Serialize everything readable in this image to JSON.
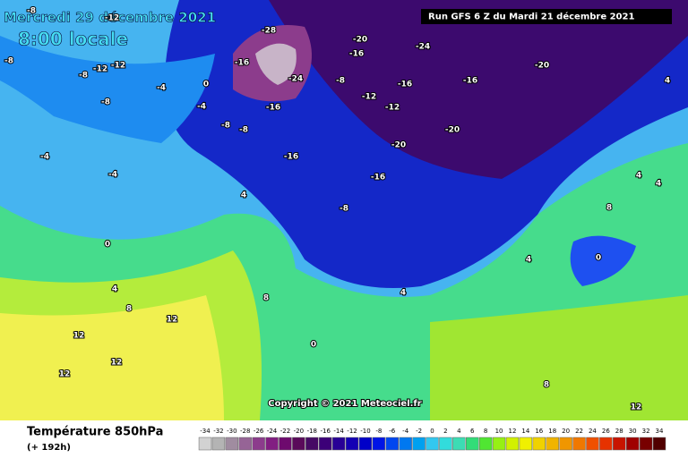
{
  "header": {
    "date": "Mercredi 29 décembre 2021",
    "time": "8:00 locale",
    "run": "Run GFS 6 Z du Mardi 21 décembre 2021"
  },
  "map": {
    "copyright": "Copyright © 2021 Meteociel.fr",
    "contour_labels": [
      "-8",
      "-12",
      "-8",
      "-8",
      "-12",
      "-12",
      "-4",
      "-8",
      "-4",
      "-8",
      "-8",
      "-28",
      "-16",
      "-24",
      "-16",
      "-8",
      "-20",
      "-16",
      "-24",
      "-12",
      "-12",
      "-16",
      "-16",
      "-20",
      "-20",
      "-20",
      "-16",
      "-16",
      "-8",
      "-4",
      "-4",
      "0",
      "4",
      "0",
      "4",
      "8",
      "12",
      "12",
      "12",
      "12",
      "8",
      "0",
      "4",
      "4",
      "4",
      "4",
      "8",
      "12",
      "8",
      "0",
      "4"
    ]
  },
  "footer": {
    "title": "Température 850hPa",
    "lead": "(+ 192h)"
  },
  "legend": {
    "labels": [
      "-34",
      "-32",
      "-30",
      "-28",
      "-26",
      "-24",
      "-22",
      "-20",
      "-18",
      "-16",
      "-14",
      "-12",
      "-10",
      "-8",
      "-6",
      "-4",
      "-2",
      "0",
      "2",
      "4",
      "6",
      "8",
      "10",
      "12",
      "14",
      "16",
      "18",
      "20",
      "22",
      "24",
      "26",
      "28",
      "30",
      "32",
      "34"
    ],
    "colors": [
      "#d2d2d2",
      "#b4b4b4",
      "#a08ca0",
      "#966496",
      "#8c3c8c",
      "#821e82",
      "#6e0a6e",
      "#5a0a5a",
      "#460a64",
      "#3c0078",
      "#280096",
      "#1400b4",
      "#0000c8",
      "#0014e6",
      "#0046f0",
      "#0078f0",
      "#00a0f0",
      "#32c8f0",
      "#32dcdc",
      "#3cdcb4",
      "#32dc78",
      "#50e632",
      "#96f014",
      "#d2f000",
      "#f0f000",
      "#f0d200",
      "#f0b400",
      "#f09600",
      "#f07800",
      "#f05000",
      "#e63200",
      "#c81400",
      "#a00000",
      "#780000",
      "#500000"
    ]
  }
}
